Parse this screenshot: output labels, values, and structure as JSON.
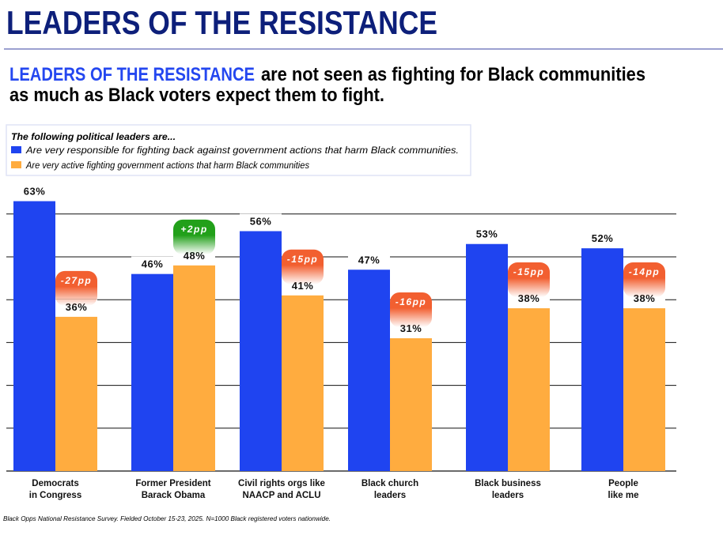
{
  "header": {
    "title": "LEADERS OF THE RESISTANCE",
    "subtitle_highlight": "LEADERS OF THE RESISTANCE",
    "subtitle_line1_rest": "are not seen as fighting for Black communities",
    "subtitle_line2": "as much as Black voters expect them to fight."
  },
  "colors": {
    "title": "#0d1f7a",
    "highlight": "#2447f0",
    "blue_series": "#1f44f0",
    "orange_series": "#ffac3f",
    "negative_badge": "#f25f30",
    "positive_badge": "#22a01a"
  },
  "footnote": "Black Opps National Resistance Survey. Fielded October 15-23, 2025. N=1000 Black registered voters nationwide.",
  "chart_data": {
    "type": "bar",
    "legend_title": "The following political leaders are...",
    "legend_position": "top-left",
    "grid": true,
    "ylim": [
      0,
      60
    ],
    "categories": [
      [
        "Democrats",
        "in Congress"
      ],
      [
        "Former President",
        "Barack Obama"
      ],
      [
        "Civil rights orgs like",
        "NAACP and ACLU"
      ],
      [
        "Black church",
        "leaders"
      ],
      [
        "Black business",
        "leaders"
      ],
      [
        "People",
        "like me"
      ]
    ],
    "series": [
      {
        "name": "Are very responsible for fighting back against government actions that harm Black communities.",
        "color": "#1f44f0",
        "values": [
          63,
          46,
          56,
          47,
          53,
          52
        ],
        "labels": [
          "63%",
          "46%",
          "56%",
          "47%",
          "53%",
          "52%"
        ]
      },
      {
        "name": "Are very active fighting government actions that harm Black communities",
        "color": "#ffac3f",
        "values": [
          36,
          48,
          41,
          31,
          38,
          38
        ],
        "labels": [
          "36%",
          "48%",
          "41%",
          "31%",
          "38%",
          "38%"
        ]
      }
    ],
    "differences": [
      "-27pp",
      "+2pp",
      "-15pp",
      "-16pp",
      "-15pp",
      "-14pp"
    ]
  }
}
